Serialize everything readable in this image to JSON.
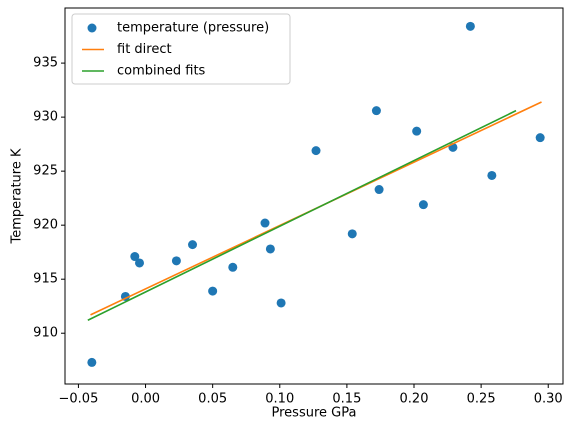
{
  "chart_data": {
    "type": "scatter",
    "xlabel": "Pressure GPa",
    "ylabel": "Temperature K",
    "xlim": [
      -0.06,
      0.311
    ],
    "ylim": [
      905.3,
      940.1
    ],
    "xticks": [
      {
        "value": -0.05,
        "label": "−0.05"
      },
      {
        "value": 0,
        "label": "0.00"
      },
      {
        "value": 0.05,
        "label": "0.05"
      },
      {
        "value": 0.1,
        "label": "0.10"
      },
      {
        "value": 0.15,
        "label": "0.15"
      },
      {
        "value": 0.2,
        "label": "0.20"
      },
      {
        "value": 0.25,
        "label": "0.25"
      },
      {
        "value": 0.3,
        "label": "0.30"
      }
    ],
    "yticks": [
      910,
      915,
      920,
      925,
      930,
      935
    ],
    "grid": false,
    "legend": "upper left",
    "series": [
      {
        "name": "temperature (pressure)",
        "type": "scatter",
        "color": "#1f77b4",
        "x": [
          -0.04,
          -0.015,
          -0.008,
          -0.0045,
          0.023,
          0.035,
          0.05,
          0.065,
          0.089,
          0.093,
          0.101,
          0.127,
          0.154,
          0.172,
          0.174,
          0.202,
          0.207,
          0.229,
          0.242,
          0.258,
          0.294
        ],
        "values": [
          907.3,
          913.4,
          917.1,
          916.5,
          916.7,
          918.2,
          913.9,
          916.1,
          920.2,
          917.8,
          912.8,
          926.9,
          919.2,
          930.6,
          923.3,
          928.7,
          921.9,
          927.2,
          938.4,
          924.6,
          928.1
        ]
      },
      {
        "name": "fit direct",
        "type": "line",
        "color": "#ff7f0e",
        "x": [
          -0.041,
          0.295
        ],
        "values": [
          911.7,
          931.4
        ]
      },
      {
        "name": "combined fits",
        "type": "line",
        "color": "#2ca02c",
        "x": [
          -0.043,
          0.276
        ],
        "values": [
          911.2,
          930.6
        ]
      }
    ]
  }
}
